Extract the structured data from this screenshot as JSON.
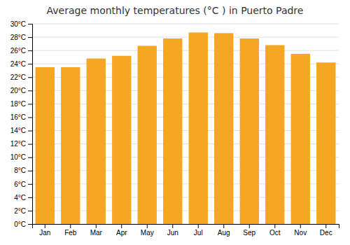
{
  "chart_data": {
    "type": "bar",
    "title": "Average monthly temperatures (°C ) in Puerto Padre",
    "categories": [
      "Jan",
      "Feb",
      "Mar",
      "Apr",
      "May",
      "Jun",
      "Jul",
      "Aug",
      "Sep",
      "Oct",
      "Nov",
      "Dec"
    ],
    "values": [
      23.5,
      23.5,
      24.8,
      25.2,
      26.7,
      27.8,
      28.7,
      28.6,
      27.8,
      26.8,
      25.5,
      24.2
    ],
    "color": "#F5A623",
    "ylim": [
      0,
      30
    ],
    "yticks": [
      {
        "value": 0,
        "label": "0°C"
      },
      {
        "value": 2,
        "label": "2°C"
      },
      {
        "value": 4,
        "label": "4°C"
      },
      {
        "value": 6,
        "label": "6°C"
      },
      {
        "value": 8,
        "label": "8°C"
      },
      {
        "value": 10,
        "label": "10°C"
      },
      {
        "value": 12,
        "label": "12°C"
      },
      {
        "value": 14,
        "label": "14°C"
      },
      {
        "value": 16,
        "label": "16°C"
      },
      {
        "value": 18,
        "label": "18°C"
      },
      {
        "value": 20,
        "label": "20°C"
      },
      {
        "value": 22,
        "label": "22°C"
      },
      {
        "value": 24,
        "label": "24°C"
      },
      {
        "value": 26,
        "label": "26°C"
      },
      {
        "value": 28,
        "label": "28°C"
      },
      {
        "value": 30,
        "label": "30°C"
      }
    ],
    "grid": true
  }
}
